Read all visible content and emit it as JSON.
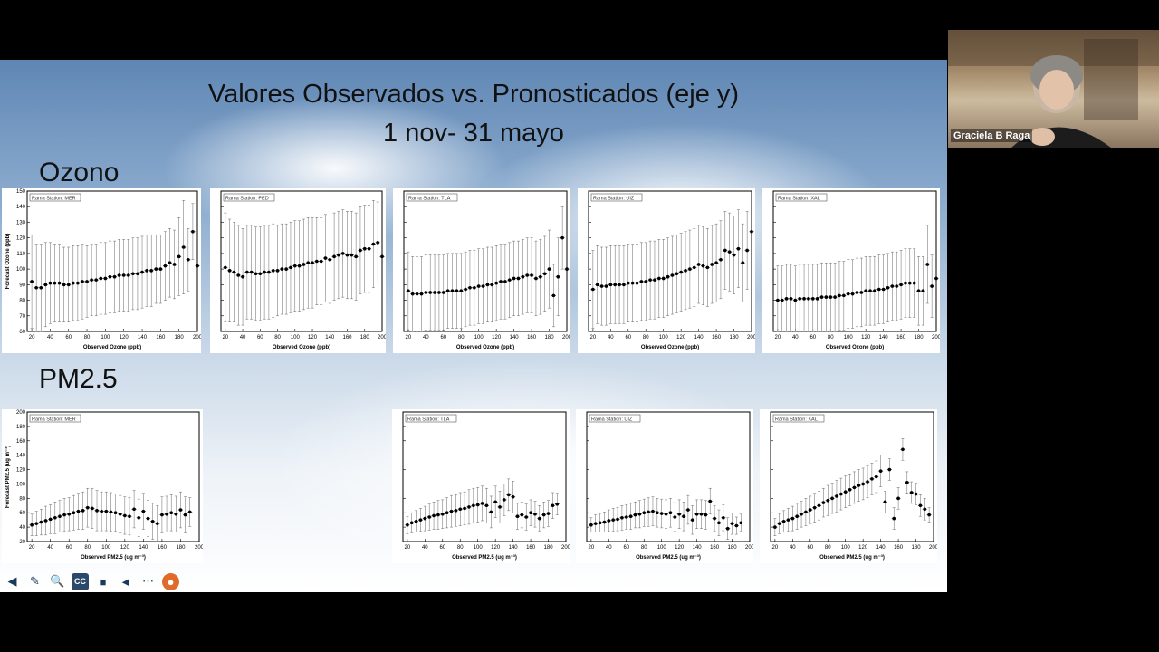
{
  "slide": {
    "title_line1": "Valores Observados vs. Pronosticados (eje y)",
    "title_line2": "1 nov- 31 mayo",
    "section_ozone": "Ozono",
    "section_pm": "PM2.5"
  },
  "participant": {
    "name": "Graciela B Raga"
  },
  "toolbar": {
    "cc_label": "CC"
  },
  "ozone_axes": {
    "xlabel": "Observed Ozone (ppb)",
    "ylabel": "Forecast Ozone (ppb)"
  },
  "pm_axes": {
    "xlabel": "Observed PM2.5 (ug m⁻³)",
    "ylabel": "Forecast PM2.5 (ug m⁻³)"
  },
  "chart_data": [
    {
      "type": "scatter",
      "title": "Rama Station: MER",
      "xlabel": "Observed Ozone (ppb)",
      "ylabel": "Forecast Ozone (ppb)",
      "xlim": [
        15,
        200
      ],
      "ylim": [
        60,
        150
      ],
      "x": [
        20,
        25,
        30,
        35,
        40,
        45,
        50,
        55,
        60,
        65,
        70,
        75,
        80,
        85,
        90,
        95,
        100,
        105,
        110,
        115,
        120,
        125,
        130,
        135,
        140,
        145,
        150,
        155,
        160,
        165,
        170,
        175,
        180,
        185,
        190,
        195,
        200
      ],
      "y": [
        92,
        88,
        88,
        90,
        91,
        91,
        91,
        90,
        90,
        91,
        91,
        92,
        92,
        93,
        93,
        94,
        94,
        95,
        95,
        96,
        96,
        96,
        97,
        97,
        98,
        99,
        99,
        100,
        100,
        102,
        104,
        103,
        108,
        114,
        106,
        124,
        102
      ],
      "err": [
        30,
        28,
        28,
        27,
        26,
        25,
        25,
        24,
        24,
        24,
        24,
        24,
        23,
        23,
        23,
        23,
        23,
        23,
        23,
        23,
        23,
        23,
        23,
        23,
        23,
        23,
        23,
        22,
        22,
        22,
        22,
        22,
        25,
        30,
        20,
        18,
        0
      ]
    },
    {
      "type": "scatter",
      "title": "Rama Station: PED",
      "xlabel": "Observed Ozone (ppb)",
      "ylabel": "",
      "xlim": [
        15,
        200
      ],
      "ylim": [
        60,
        150
      ],
      "x": [
        20,
        25,
        30,
        35,
        40,
        45,
        50,
        55,
        60,
        65,
        70,
        75,
        80,
        85,
        90,
        95,
        100,
        105,
        110,
        115,
        120,
        125,
        130,
        135,
        140,
        145,
        150,
        155,
        160,
        165,
        170,
        175,
        180,
        185,
        190,
        195,
        200
      ],
      "y": [
        101,
        99,
        98,
        96,
        95,
        98,
        98,
        97,
        97,
        98,
        98,
        99,
        99,
        100,
        100,
        101,
        102,
        102,
        103,
        104,
        104,
        105,
        105,
        107,
        106,
        108,
        109,
        110,
        109,
        109,
        108,
        112,
        113,
        113,
        116,
        117,
        108
      ],
      "err": [
        35,
        33,
        32,
        32,
        31,
        30,
        30,
        30,
        30,
        30,
        30,
        30,
        29,
        29,
        29,
        29,
        29,
        29,
        29,
        29,
        29,
        28,
        28,
        28,
        28,
        28,
        28,
        28,
        28,
        28,
        28,
        28,
        28,
        28,
        28,
        26,
        0
      ]
    },
    {
      "type": "scatter",
      "title": "Rama Station: TLA",
      "xlabel": "Observed Ozone (ppb)",
      "ylabel": "",
      "xlim": [
        15,
        200
      ],
      "ylim": [
        60,
        150
      ],
      "x": [
        20,
        25,
        30,
        35,
        40,
        45,
        50,
        55,
        60,
        65,
        70,
        75,
        80,
        85,
        90,
        95,
        100,
        105,
        110,
        115,
        120,
        125,
        130,
        135,
        140,
        145,
        150,
        155,
        160,
        165,
        170,
        175,
        180,
        185,
        190,
        195,
        200
      ],
      "y": [
        86,
        84,
        84,
        84,
        85,
        85,
        85,
        85,
        85,
        86,
        86,
        86,
        86,
        87,
        88,
        88,
        89,
        89,
        90,
        90,
        91,
        92,
        92,
        93,
        94,
        94,
        95,
        96,
        96,
        94,
        95,
        97,
        100,
        83,
        95,
        120,
        100
      ],
      "err": [
        25,
        24,
        24,
        24,
        24,
        24,
        24,
        24,
        24,
        24,
        24,
        24,
        24,
        24,
        24,
        24,
        24,
        24,
        24,
        24,
        24,
        24,
        24,
        24,
        24,
        24,
        24,
        24,
        24,
        24,
        24,
        24,
        25,
        20,
        25,
        20,
        0
      ]
    },
    {
      "type": "scatter",
      "title": "Rama Station: UIZ",
      "xlabel": "Observed Ozone (ppb)",
      "ylabel": "",
      "xlim": [
        15,
        200
      ],
      "ylim": [
        60,
        150
      ],
      "x": [
        20,
        25,
        30,
        35,
        40,
        45,
        50,
        55,
        60,
        65,
        70,
        75,
        80,
        85,
        90,
        95,
        100,
        105,
        110,
        115,
        120,
        125,
        130,
        135,
        140,
        145,
        150,
        155,
        160,
        165,
        170,
        175,
        180,
        185,
        190,
        195,
        200
      ],
      "y": [
        87,
        90,
        89,
        89,
        90,
        90,
        90,
        90,
        91,
        91,
        91,
        92,
        92,
        93,
        93,
        94,
        94,
        95,
        96,
        97,
        98,
        99,
        100,
        101,
        103,
        102,
        101,
        103,
        104,
        106,
        112,
        111,
        109,
        113,
        104,
        112,
        124
      ],
      "err": [
        25,
        25,
        25,
        25,
        25,
        25,
        25,
        25,
        25,
        25,
        25,
        25,
        25,
        25,
        25,
        25,
        25,
        25,
        25,
        25,
        25,
        25,
        25,
        25,
        25,
        25,
        25,
        25,
        25,
        25,
        25,
        25,
        25,
        25,
        25,
        25,
        0
      ]
    },
    {
      "type": "scatter",
      "title": "Rama Station: XAL",
      "xlabel": "Observed Ozone (ppb)",
      "ylabel": "",
      "xlim": [
        15,
        200
      ],
      "ylim": [
        60,
        150
      ],
      "x": [
        20,
        25,
        30,
        35,
        40,
        45,
        50,
        55,
        60,
        65,
        70,
        75,
        80,
        85,
        90,
        95,
        100,
        105,
        110,
        115,
        120,
        125,
        130,
        135,
        140,
        145,
        150,
        155,
        160,
        165,
        170,
        175,
        180,
        185,
        190,
        195,
        200
      ],
      "y": [
        80,
        80,
        81,
        81,
        80,
        81,
        81,
        81,
        81,
        81,
        82,
        82,
        82,
        82,
        83,
        83,
        84,
        84,
        85,
        85,
        86,
        86,
        86,
        87,
        87,
        88,
        89,
        89,
        90,
        91,
        91,
        91,
        86,
        86,
        103,
        89,
        94
      ],
      "err": [
        22,
        22,
        22,
        22,
        22,
        22,
        22,
        22,
        22,
        22,
        22,
        22,
        22,
        22,
        22,
        22,
        22,
        22,
        22,
        22,
        22,
        22,
        22,
        22,
        22,
        22,
        22,
        22,
        22,
        22,
        22,
        22,
        22,
        22,
        25,
        20,
        0
      ]
    },
    {
      "type": "scatter",
      "title": "Rama Station: MER",
      "xlabel": "Observed PM2.5 (ug m⁻³)",
      "ylabel": "Forecast PM2.5 (ug m⁻³)",
      "xlim": [
        15,
        200
      ],
      "ylim": [
        20,
        200
      ],
      "x": [
        20,
        25,
        30,
        35,
        40,
        45,
        50,
        55,
        60,
        65,
        70,
        75,
        80,
        85,
        90,
        95,
        100,
        105,
        110,
        115,
        120,
        125,
        130,
        135,
        140,
        145,
        150,
        155,
        160,
        165,
        170,
        175,
        180,
        185,
        190
      ],
      "y": [
        43,
        45,
        47,
        49,
        51,
        53,
        55,
        57,
        58,
        60,
        62,
        63,
        67,
        66,
        63,
        62,
        62,
        61,
        60,
        58,
        56,
        55,
        65,
        53,
        62,
        52,
        48,
        45,
        57,
        58,
        60,
        58,
        64,
        57,
        61
      ],
      "err": [
        15,
        17,
        18,
        20,
        20,
        22,
        22,
        23,
        23,
        24,
        25,
        26,
        27,
        28,
        28,
        27,
        27,
        27,
        26,
        26,
        26,
        26,
        26,
        26,
        25,
        25,
        25,
        25,
        25,
        25,
        25,
        25,
        25,
        25,
        20
      ]
    },
    {
      "type": "scatter",
      "title": "Rama Station: TLA",
      "xlabel": "Observed PM2.5 (ug m⁻³)",
      "ylabel": "",
      "xlim": [
        15,
        200
      ],
      "ylim": [
        20,
        200
      ],
      "x": [
        20,
        25,
        30,
        35,
        40,
        45,
        50,
        55,
        60,
        65,
        70,
        75,
        80,
        85,
        90,
        95,
        100,
        105,
        110,
        115,
        120,
        125,
        130,
        135,
        140,
        145,
        150,
        155,
        160,
        165,
        170,
        175,
        180,
        185,
        190
      ],
      "y": [
        43,
        46,
        48,
        50,
        52,
        54,
        56,
        57,
        58,
        60,
        62,
        63,
        65,
        66,
        68,
        70,
        71,
        73,
        70,
        61,
        75,
        68,
        78,
        85,
        82,
        55,
        57,
        54,
        60,
        58,
        52,
        57,
        59,
        70,
        72
      ],
      "err": [
        12,
        14,
        15,
        16,
        17,
        18,
        19,
        20,
        20,
        21,
        22,
        22,
        23,
        23,
        24,
        24,
        24,
        24,
        24,
        22,
        22,
        22,
        22,
        22,
        22,
        18,
        18,
        18,
        18,
        18,
        18,
        18,
        18,
        18,
        15
      ]
    },
    {
      "type": "scatter",
      "title": "Rama Station: UIZ",
      "xlabel": "Observed PM2.5 (ug m⁻³)",
      "ylabel": "",
      "xlim": [
        15,
        200
      ],
      "ylim": [
        20,
        200
      ],
      "x": [
        20,
        25,
        30,
        35,
        40,
        45,
        50,
        55,
        60,
        65,
        70,
        75,
        80,
        85,
        90,
        95,
        100,
        105,
        110,
        115,
        120,
        125,
        130,
        135,
        140,
        145,
        150,
        155,
        160,
        165,
        170,
        175,
        180,
        185,
        190
      ],
      "y": [
        43,
        45,
        46,
        47,
        49,
        50,
        51,
        53,
        54,
        55,
        57,
        58,
        60,
        61,
        62,
        60,
        59,
        58,
        60,
        54,
        58,
        55,
        64,
        50,
        58,
        58,
        57,
        76,
        52,
        46,
        53,
        38,
        45,
        42,
        46
      ],
      "err": [
        10,
        12,
        13,
        14,
        15,
        16,
        16,
        17,
        17,
        18,
        18,
        19,
        19,
        20,
        20,
        20,
        20,
        20,
        20,
        20,
        20,
        20,
        20,
        20,
        20,
        20,
        20,
        18,
        18,
        18,
        18,
        15,
        15,
        12,
        12
      ]
    },
    {
      "type": "scatter",
      "title": "Rama Station: XAL",
      "xlabel": "Observed PM2.5 (ug m⁻³)",
      "ylabel": "",
      "xlim": [
        15,
        200
      ],
      "ylim": [
        20,
        200
      ],
      "x": [
        20,
        25,
        30,
        35,
        40,
        45,
        50,
        55,
        60,
        65,
        70,
        75,
        80,
        85,
        90,
        95,
        100,
        105,
        110,
        115,
        120,
        125,
        130,
        135,
        140,
        145,
        150,
        155,
        160,
        165,
        170,
        175,
        180,
        185,
        190,
        195
      ],
      "y": [
        40,
        45,
        48,
        50,
        52,
        55,
        58,
        61,
        64,
        67,
        70,
        74,
        77,
        80,
        83,
        86,
        89,
        92,
        95,
        98,
        100,
        103,
        107,
        110,
        118,
        75,
        120,
        52,
        80,
        148,
        102,
        88,
        86,
        70,
        65,
        57
      ],
      "err": [
        12,
        14,
        15,
        16,
        17,
        18,
        18,
        19,
        19,
        20,
        20,
        20,
        21,
        21,
        22,
        22,
        22,
        22,
        22,
        22,
        22,
        22,
        22,
        22,
        22,
        15,
        15,
        15,
        15,
        15,
        15,
        15,
        15,
        15,
        15,
        10
      ]
    }
  ]
}
